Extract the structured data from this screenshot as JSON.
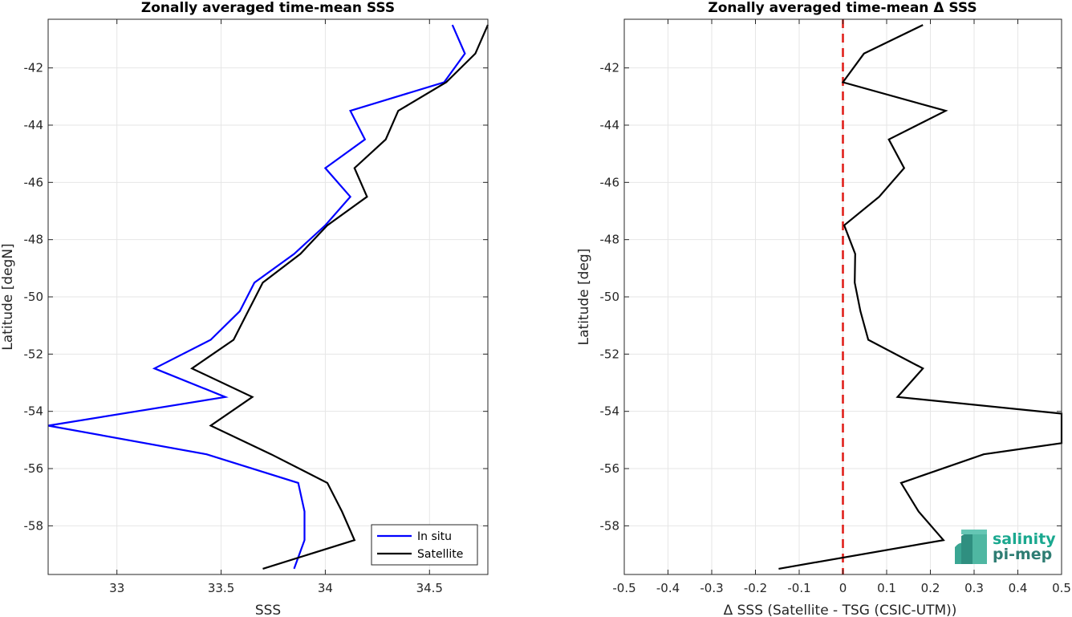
{
  "chart_data": [
    {
      "type": "line",
      "title": "Zonally averaged time-mean SSS",
      "xlabel": "SSS",
      "ylabel": "Latitude [degN]",
      "xlim": [
        32.67,
        34.78
      ],
      "ylim": [
        -59.7,
        -40.3
      ],
      "xticks": [
        "33",
        "33.5",
        "34",
        "34.5"
      ],
      "xtick_values": [
        33,
        33.5,
        34,
        34.5
      ],
      "yticks": [
        "-58",
        "-56",
        "-54",
        "-52",
        "-50",
        "-48",
        "-46",
        "-44",
        "-42"
      ],
      "ytick_values": [
        -58,
        -56,
        -54,
        -52,
        -50,
        -48,
        -46,
        -44,
        -42
      ],
      "grid": true,
      "legend_position": "bottom-right",
      "series": [
        {
          "name": "In situ",
          "color": "#0000ff",
          "lat": [
            -40.5,
            -41.5,
            -42.5,
            -43.5,
            -44.5,
            -45.5,
            -46.5,
            -47.5,
            -48.5,
            -49.5,
            -50.5,
            -51.5,
            -52.5,
            -53.5,
            -54.5,
            -55.5,
            -56.5,
            -57.5,
            -58.5,
            -59.5
          ],
          "values": [
            34.61,
            34.67,
            34.57,
            34.12,
            34.19,
            34.0,
            34.12,
            34.0,
            33.85,
            33.66,
            33.59,
            33.45,
            33.18,
            33.52,
            32.67,
            33.43,
            33.87,
            33.9,
            33.9,
            33.85
          ]
        },
        {
          "name": "Satellite",
          "color": "#000000",
          "lat": [
            -40.5,
            -41.5,
            -42.5,
            -43.5,
            -44.5,
            -45.5,
            -46.5,
            -47.5,
            -48.5,
            -49.5,
            -50.5,
            -51.5,
            -52.5,
            -53.5,
            -54.5,
            -55.5,
            -56.5,
            -57.5,
            -58.5,
            -59.5
          ],
          "values": [
            34.78,
            34.72,
            34.58,
            34.35,
            34.29,
            34.14,
            34.2,
            34.01,
            33.88,
            33.7,
            33.63,
            33.56,
            33.36,
            33.65,
            33.45,
            33.74,
            34.01,
            34.08,
            34.14,
            33.7
          ]
        }
      ]
    },
    {
      "type": "line",
      "title": "Zonally averaged time-mean Δ SSS",
      "xlabel": "Δ SSS (Satellite - TSG (CSIC-UTM))",
      "ylabel": "Latitude [deg]",
      "xlim": [
        -0.5,
        0.5
      ],
      "ylim": [
        -59.7,
        -40.3
      ],
      "xticks": [
        "-0.5",
        "-0.4",
        "-0.3",
        "-0.2",
        "-0.1",
        "0",
        "0.1",
        "0.2",
        "0.3",
        "0.4",
        "0.5"
      ],
      "xtick_values": [
        -0.5,
        -0.4,
        -0.3,
        -0.2,
        -0.1,
        0,
        0.1,
        0.2,
        0.3,
        0.4,
        0.5
      ],
      "yticks": [
        "-58",
        "-56",
        "-54",
        "-52",
        "-50",
        "-48",
        "-46",
        "-44",
        "-42"
      ],
      "ytick_values": [
        -58,
        -56,
        -54,
        -52,
        -50,
        -48,
        -46,
        -44,
        -42
      ],
      "grid": true,
      "reference_line": {
        "x": 0,
        "color": "#e0201b",
        "style": "dashed"
      },
      "series": [
        {
          "name": "",
          "color": "#000000",
          "lat": [
            -40.5,
            -41.5,
            -42.5,
            -43.5,
            -44.5,
            -45.5,
            -46.5,
            -47.5,
            -48.5,
            -49.5,
            -50.5,
            -51.5,
            -52.5,
            -53.5,
            -54.08,
            -55.11,
            -55.5,
            -56.5,
            -57.5,
            -58.5,
            -59.5
          ],
          "values": [
            0.183,
            0.048,
            0.0,
            0.235,
            0.105,
            0.14,
            0.083,
            0.003,
            0.028,
            0.027,
            0.04,
            0.058,
            0.183,
            0.125,
            0.5,
            0.5,
            0.322,
            0.133,
            0.173,
            0.23,
            -0.147
          ]
        }
      ]
    }
  ],
  "legend": {
    "items": [
      "In situ",
      "Satellite"
    ]
  },
  "logo": {
    "line1": "salinity",
    "line2": "pi-mep"
  }
}
